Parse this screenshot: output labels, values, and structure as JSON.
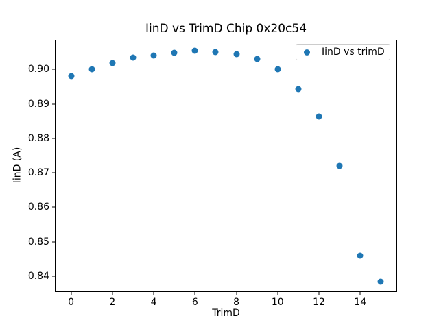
{
  "chart_data": {
    "type": "scatter",
    "title": "IinD vs TrimD Chip 0x20c54",
    "xlabel": "TrimD",
    "ylabel": "IinD (A)",
    "legend_label": "IinD vs trimD",
    "legend_position": "upper right",
    "marker_color": "#1f77b4",
    "background_color": "#ffffff",
    "grid": false,
    "x": [
      0,
      1,
      2,
      3,
      4,
      5,
      6,
      7,
      8,
      9,
      10,
      11,
      12,
      13,
      14,
      15
    ],
    "y": [
      0.898,
      0.9001,
      0.9019,
      0.9034,
      0.9041,
      0.9049,
      0.9055,
      0.9051,
      0.9044,
      0.9031,
      0.9001,
      0.8943,
      0.8864,
      0.872,
      0.8459,
      0.8384
    ],
    "xlim": [
      -0.75,
      15.75
    ],
    "ylim": [
      0.8356,
      0.9084
    ],
    "xticks": [
      0,
      2,
      4,
      6,
      8,
      10,
      12,
      14
    ],
    "yticks": [
      0.84,
      0.85,
      0.86,
      0.87,
      0.88,
      0.89,
      0.9
    ],
    "ytick_decimals": 2
  }
}
